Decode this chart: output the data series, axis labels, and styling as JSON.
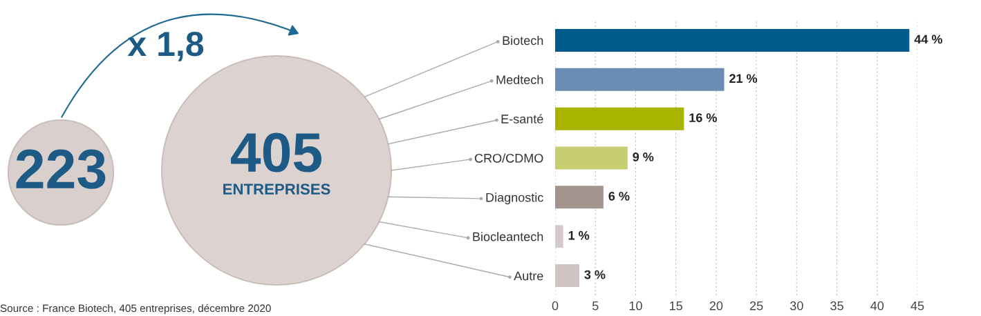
{
  "chart_data": {
    "type": "bar",
    "orientation": "horizontal",
    "categories": [
      "Biotech",
      "Medtech",
      "E-santé",
      "CRO/CDMO",
      "Diagnostic",
      "Biocleantech",
      "Autre"
    ],
    "values": [
      44,
      21,
      16,
      9,
      6,
      1,
      3
    ],
    "colors": [
      "#005a8c",
      "#6a8cb3",
      "#a9b400",
      "#c7ce72",
      "#a3948e",
      "#d5c9cb",
      "#cfc2c2"
    ],
    "value_labels": [
      "44 %",
      "21 %",
      "16 %",
      "9 %",
      "6 %",
      "1 %",
      "3 %"
    ],
    "xlim": [
      0,
      45
    ],
    "xticks": [
      0,
      5,
      10,
      15,
      20,
      25,
      30,
      35,
      40,
      45
    ],
    "grid": "x",
    "annotations": [
      "x 1,8",
      "223",
      "405",
      "ENTREPRISES",
      "Source : France Biotech, 405 entreprises, décembre 2020"
    ]
  }
}
